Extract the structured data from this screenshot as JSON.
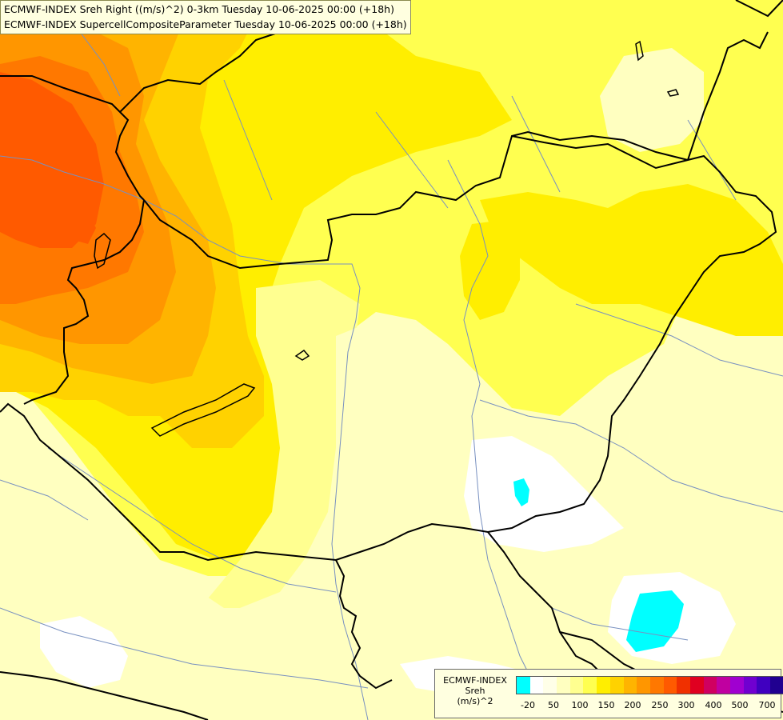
{
  "header": {
    "line1": "ECMWF-INDEX Sreh Right ((m/s)^2) 0-3km Tuesday 10-06-2025 00:00 (+18h)",
    "line2": "ECMWF-INDEX SupercellCompositeParameter Tuesday 10-06-2025 00:00 (+18h)"
  },
  "legend": {
    "title_model": "ECMWF-INDEX",
    "title_param": "Sreh",
    "title_unit": "(m/s)^2",
    "colors": [
      "#00ffff",
      "#ffffff",
      "#ffffe8",
      "#ffffc0",
      "#ffff90",
      "#ffff50",
      "#ffee00",
      "#ffd200",
      "#ffb400",
      "#ff9600",
      "#ff7800",
      "#ff5a00",
      "#f03000",
      "#e00020",
      "#d00060",
      "#c000a0",
      "#a000d0",
      "#7000d0",
      "#4000c0",
      "#200090",
      "#000070"
    ],
    "labels": [
      "-20",
      "50",
      "100",
      "150",
      "200",
      "250",
      "300",
      "400",
      "500",
      "700"
    ]
  },
  "map_colors": {
    "background": "#ffffc0",
    "pale": "#ffffe0",
    "light_yellow": "#ffff90",
    "yellow": "#ffff50",
    "gold": "#ffee00",
    "orange_light": "#ffd200",
    "orange": "#ffb400",
    "orange_dark": "#ff9600",
    "red_orange": "#ff7800",
    "red": "#ff5a00",
    "white": "#ffffff",
    "cyan": "#00ffff",
    "border": "#000000",
    "river": "#7890c0"
  }
}
